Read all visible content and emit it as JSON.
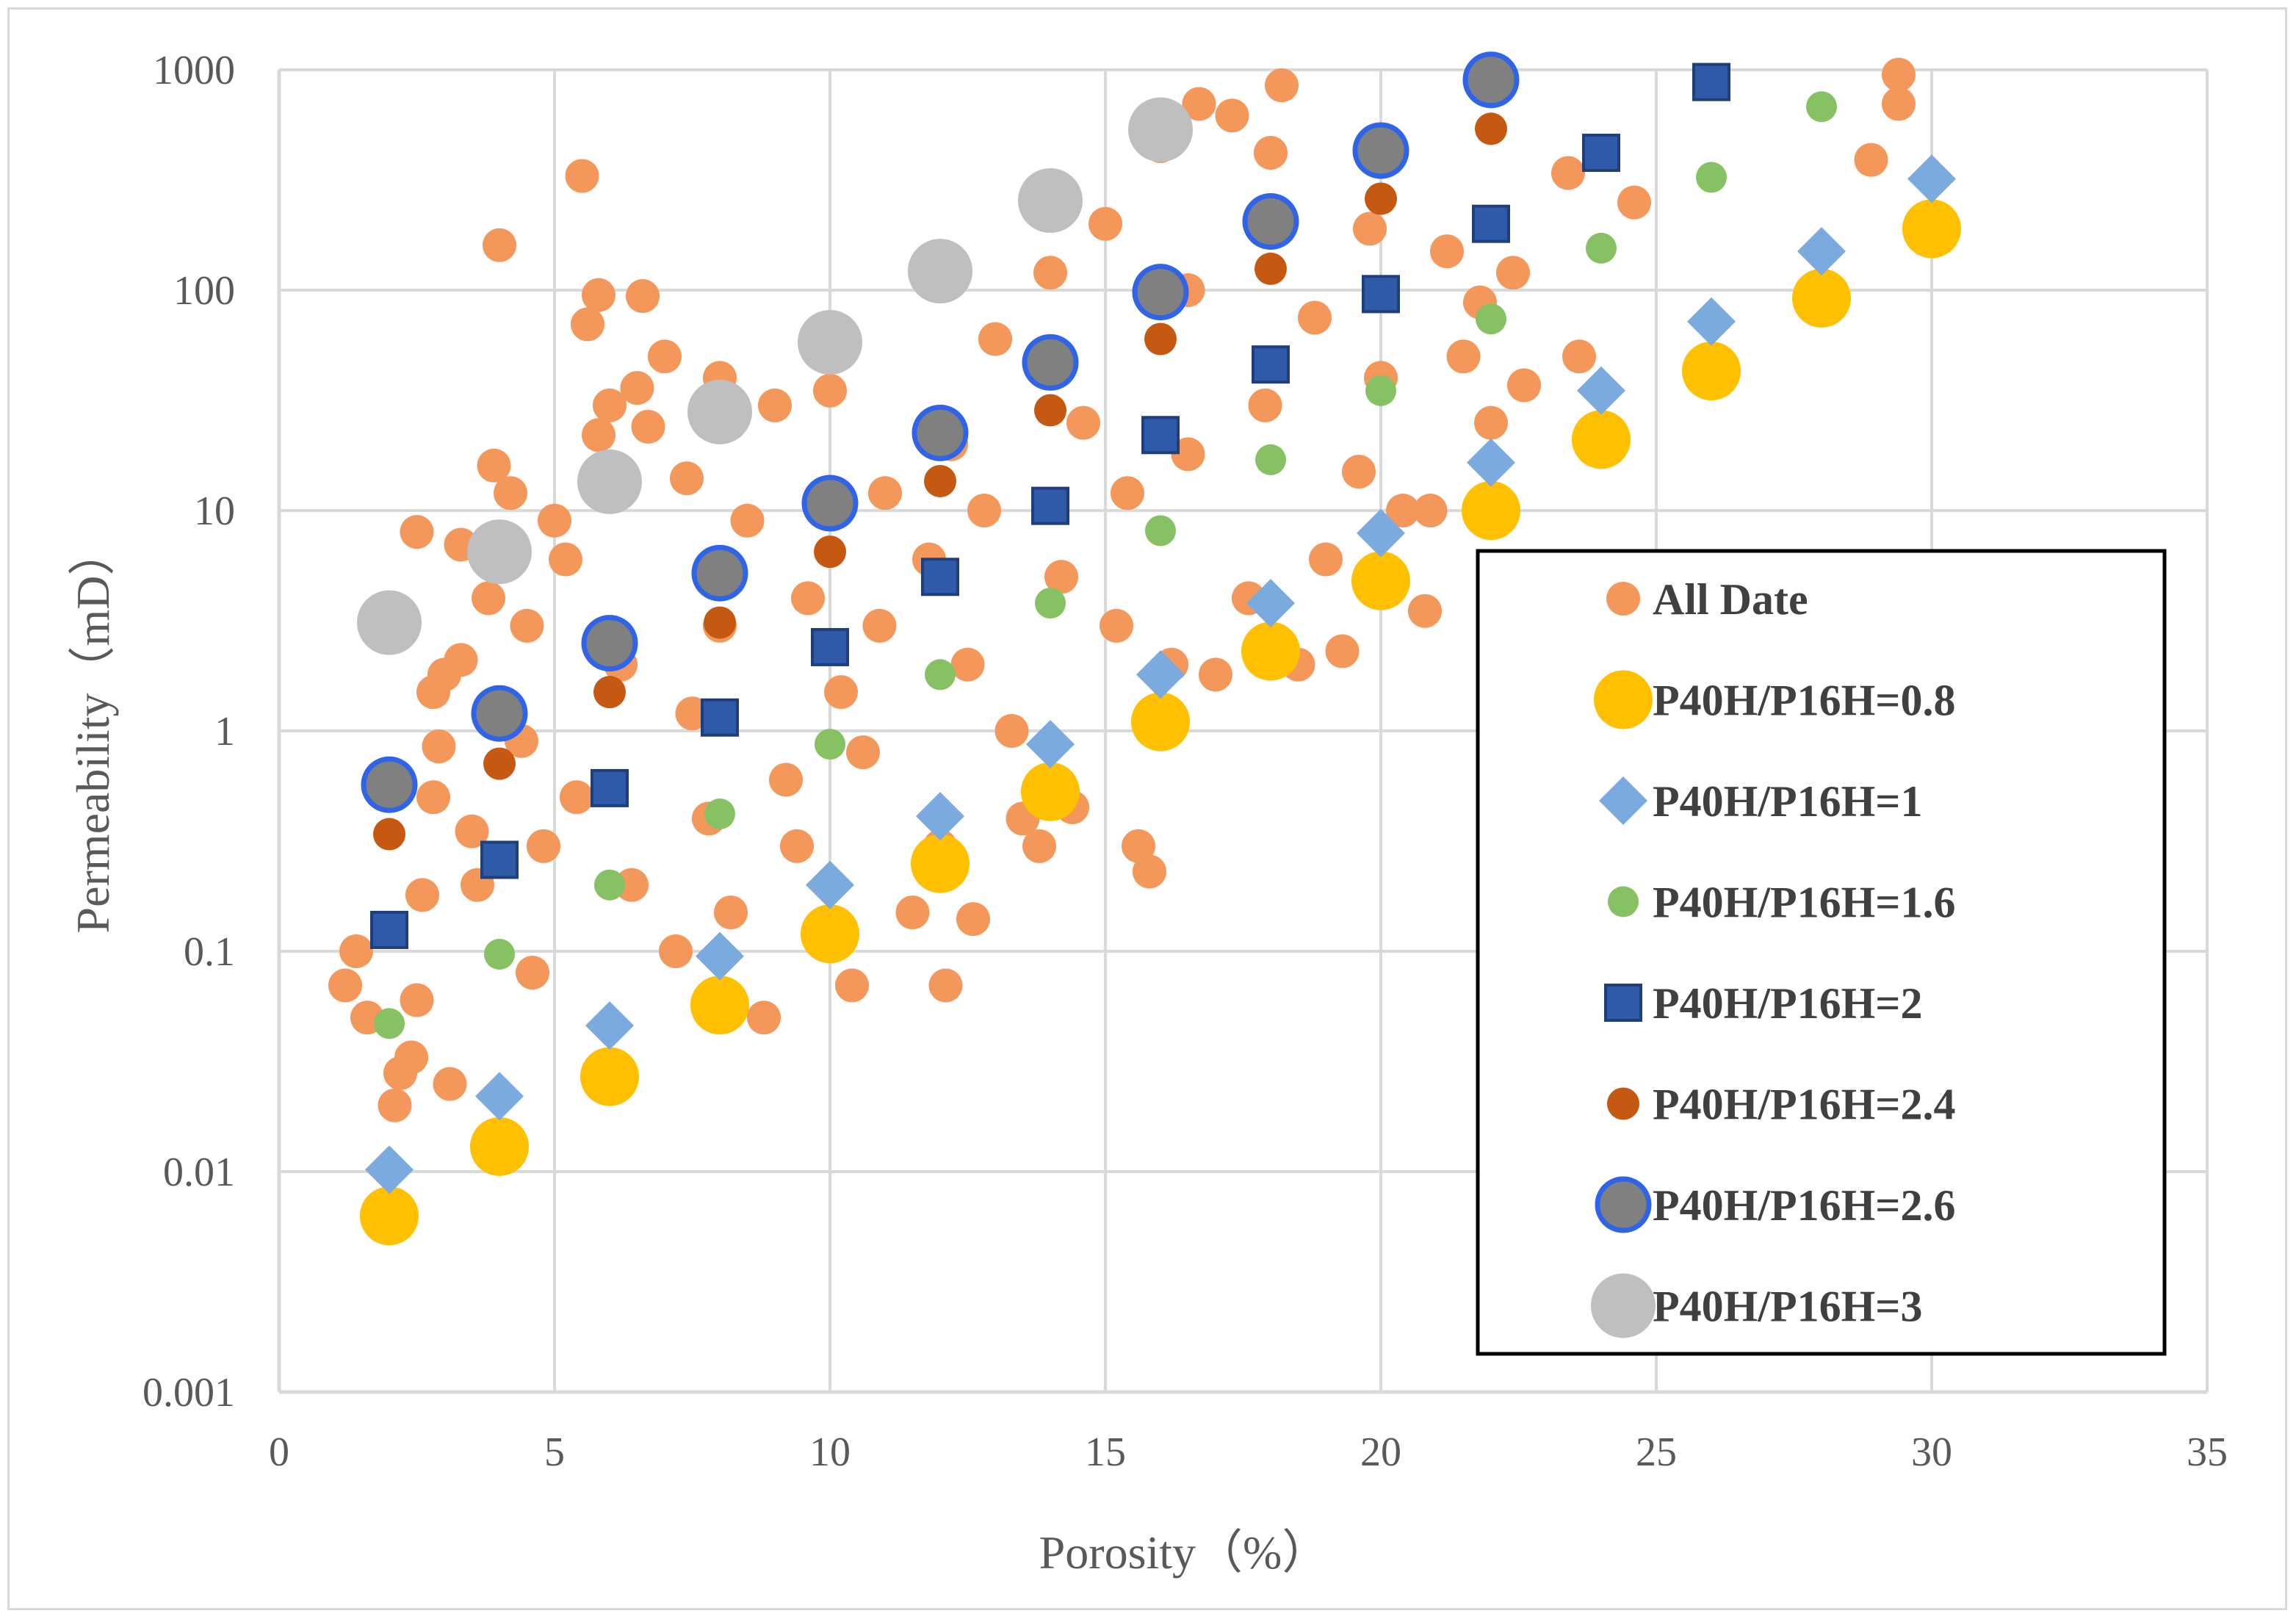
{
  "chart_data": {
    "type": "scatter",
    "xlabel": "Porosity（%）",
    "ylabel": "Permeability（mD）",
    "xlim": [
      0,
      35
    ],
    "ylim": [
      0.001,
      1000
    ],
    "yscale": "log",
    "grid": true,
    "legend_position": "bottom-right",
    "x_ticks": [
      "0",
      "5",
      "10",
      "15",
      "20",
      "25",
      "30",
      "35"
    ],
    "y_ticks": [
      "0.001",
      "0.01",
      "0.1",
      "1",
      "10",
      "100",
      "1000"
    ],
    "colors": {
      "all_data": "#f4975a",
      "all_data_edge": "#e8402a",
      "p08": "#ffc000",
      "p1": "#7aaade",
      "p16": "#86c164",
      "p2": "#2e5aa8",
      "p2_edge": "#1f3f7a",
      "p24": "#c65911",
      "p26_fill": "#808080",
      "p26_edge": "#2f64e8",
      "p3": "#bfbfbf",
      "grid": "#d9d9d9"
    },
    "series": [
      {
        "name": "All Date",
        "key": "all",
        "points": [
          [
            1.2,
            0.07
          ],
          [
            1.4,
            0.1
          ],
          [
            1.6,
            0.05
          ],
          [
            2.1,
            0.02
          ],
          [
            2.2,
            0.028
          ],
          [
            2.4,
            0.033
          ],
          [
            2.5,
            0.06
          ],
          [
            2.6,
            0.18
          ],
          [
            2.8,
            0.5
          ],
          [
            2.9,
            0.85
          ],
          [
            2.5,
            8
          ],
          [
            2.8,
            1.5
          ],
          [
            3.0,
            1.8
          ],
          [
            3.3,
            2.1
          ],
          [
            3.1,
            0.025
          ],
          [
            3.5,
            0.35
          ],
          [
            3.6,
            0.2
          ],
          [
            3.3,
            7
          ],
          [
            3.8,
            4
          ],
          [
            3.9,
            16
          ],
          [
            4.0,
            160
          ],
          [
            4.2,
            12
          ],
          [
            4.4,
            0.9
          ],
          [
            4.5,
            3
          ],
          [
            4.6,
            0.08
          ],
          [
            4.8,
            0.3
          ],
          [
            5.0,
            9
          ],
          [
            5.2,
            6
          ],
          [
            5.4,
            0.5
          ],
          [
            5.5,
            330
          ],
          [
            5.6,
            70
          ],
          [
            5.8,
            95
          ],
          [
            5.8,
            22
          ],
          [
            6.0,
            30
          ],
          [
            6.2,
            2
          ],
          [
            6.4,
            0.2
          ],
          [
            6.5,
            36
          ],
          [
            6.6,
            94
          ],
          [
            6.7,
            24
          ],
          [
            7.0,
            50
          ],
          [
            7.2,
            0.1
          ],
          [
            7.4,
            14
          ],
          [
            7.5,
            1.2
          ],
          [
            7.8,
            0.4
          ],
          [
            8.0,
            3
          ],
          [
            8.0,
            40
          ],
          [
            8.2,
            0.15
          ],
          [
            8.5,
            9
          ],
          [
            8.8,
            0.05
          ],
          [
            9.0,
            30
          ],
          [
            9.2,
            0.6
          ],
          [
            9.4,
            0.3
          ],
          [
            9.6,
            4
          ],
          [
            10.0,
            35
          ],
          [
            10.2,
            1.5
          ],
          [
            10.4,
            0.07
          ],
          [
            10.6,
            0.8
          ],
          [
            10.9,
            3
          ],
          [
            11.0,
            12
          ],
          [
            11.5,
            0.15
          ],
          [
            11.8,
            6
          ],
          [
            12.0,
            0.3
          ],
          [
            12.1,
            0.07
          ],
          [
            12.2,
            20
          ],
          [
            12.5,
            2
          ],
          [
            12.6,
            0.14
          ],
          [
            12.8,
            10
          ],
          [
            13.0,
            60
          ],
          [
            13.3,
            1
          ],
          [
            13.5,
            0.4
          ],
          [
            13.8,
            0.3
          ],
          [
            14.0,
            120
          ],
          [
            14.2,
            5
          ],
          [
            14.4,
            0.45
          ],
          [
            14.6,
            25
          ],
          [
            15.0,
            200
          ],
          [
            15.2,
            3
          ],
          [
            15.4,
            12
          ],
          [
            15.6,
            0.3
          ],
          [
            15.8,
            0.23
          ],
          [
            16.0,
            450
          ],
          [
            16.2,
            2
          ],
          [
            16.5,
            18
          ],
          [
            16.7,
            700
          ],
          [
            16.5,
            100
          ],
          [
            17.0,
            1.8
          ],
          [
            17.3,
            620
          ],
          [
            17.6,
            4
          ],
          [
            17.9,
            30
          ],
          [
            18.0,
            420
          ],
          [
            18.2,
            850
          ],
          [
            18.5,
            2
          ],
          [
            18.8,
            75
          ],
          [
            19.0,
            6
          ],
          [
            19.3,
            2.3
          ],
          [
            19.6,
            15
          ],
          [
            19.8,
            190
          ],
          [
            20.0,
            40
          ],
          [
            20.4,
            10
          ],
          [
            20.8,
            3.5
          ],
          [
            20.9,
            10
          ],
          [
            21.2,
            150
          ],
          [
            21.5,
            50
          ],
          [
            21.8,
            88
          ],
          [
            22.0,
            25
          ],
          [
            22.4,
            120
          ],
          [
            22.6,
            37
          ],
          [
            23.4,
            340
          ],
          [
            23.6,
            50
          ],
          [
            24.6,
            250
          ],
          [
            28.9,
            390
          ],
          [
            29.4,
            700
          ],
          [
            29.4,
            950
          ]
        ]
      },
      {
        "name": "P40H/P16H=0.8",
        "key": "p08",
        "points": [
          [
            2,
            0.0063
          ],
          [
            4,
            0.013
          ],
          [
            6,
            0.027
          ],
          [
            8,
            0.057
          ],
          [
            10,
            0.12
          ],
          [
            12,
            0.25
          ],
          [
            14,
            0.53
          ],
          [
            16,
            1.1
          ],
          [
            18,
            2.3
          ],
          [
            20,
            4.8
          ],
          [
            22,
            10
          ],
          [
            24,
            21
          ],
          [
            26,
            43
          ],
          [
            28,
            92
          ],
          [
            30,
            190
          ]
        ]
      },
      {
        "name": "P40H/P16H=1",
        "key": "p1",
        "points": [
          [
            2,
            0.0102
          ],
          [
            4,
            0.022
          ],
          [
            6,
            0.046
          ],
          [
            8,
            0.095
          ],
          [
            10,
            0.2
          ],
          [
            12,
            0.41
          ],
          [
            14,
            0.87
          ],
          [
            16,
            1.8
          ],
          [
            18,
            3.8
          ],
          [
            20,
            7.9
          ],
          [
            22,
            16.5
          ],
          [
            24,
            35
          ],
          [
            26,
            72
          ],
          [
            28,
            150
          ],
          [
            30,
            320
          ]
        ]
      },
      {
        "name": "P40H/P16H=1.6",
        "key": "p16",
        "points": [
          [
            2,
            0.047
          ],
          [
            4,
            0.097
          ],
          [
            6,
            0.2
          ],
          [
            8,
            0.42
          ],
          [
            10,
            0.87
          ],
          [
            12,
            1.8
          ],
          [
            14,
            3.8
          ],
          [
            16,
            8.1
          ],
          [
            18,
            17
          ],
          [
            20,
            35
          ],
          [
            22,
            74
          ],
          [
            24,
            155
          ],
          [
            26,
            325
          ],
          [
            28,
            680
          ]
        ]
      },
      {
        "name": "P40H/P16H=2",
        "key": "p2",
        "points": [
          [
            2,
            0.125
          ],
          [
            4,
            0.26
          ],
          [
            6,
            0.55
          ],
          [
            8,
            1.15
          ],
          [
            10,
            2.4
          ],
          [
            12,
            5
          ],
          [
            14,
            10.5
          ],
          [
            16,
            22
          ],
          [
            18,
            46
          ],
          [
            20,
            96
          ],
          [
            22,
            200
          ],
          [
            24,
            420
          ],
          [
            26,
            880
          ]
        ]
      },
      {
        "name": "P40H/P16H=2.4",
        "key": "p24",
        "points": [
          [
            2,
            0.34
          ],
          [
            4,
            0.71
          ],
          [
            6,
            1.5
          ],
          [
            8,
            3.1
          ],
          [
            10,
            6.5
          ],
          [
            12,
            13.6
          ],
          [
            14,
            28.5
          ],
          [
            16,
            60
          ],
          [
            18,
            125
          ],
          [
            20,
            260
          ],
          [
            22,
            540
          ]
        ]
      },
      {
        "name": "P40H/P16H=2.6",
        "key": "p26",
        "points": [
          [
            2,
            0.57
          ],
          [
            4,
            1.2
          ],
          [
            6,
            2.5
          ],
          [
            8,
            5.2
          ],
          [
            10,
            10.8
          ],
          [
            12,
            22.5
          ],
          [
            14,
            47
          ],
          [
            16,
            98
          ],
          [
            18,
            205
          ],
          [
            20,
            430
          ],
          [
            22,
            900
          ]
        ]
      },
      {
        "name": "P40H/P16H=3",
        "key": "p3",
        "points": [
          [
            2,
            3.1
          ],
          [
            4,
            6.5
          ],
          [
            6,
            13.5
          ],
          [
            8,
            28
          ],
          [
            10,
            58
          ],
          [
            12,
            122
          ],
          [
            14,
            255
          ],
          [
            16,
            535
          ]
        ]
      }
    ]
  }
}
